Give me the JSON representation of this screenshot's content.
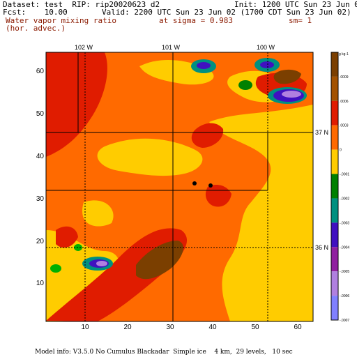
{
  "header": {
    "dataset": "Dataset: test  RIP: rip20020623 d2",
    "init": "Init: 1200 UTC Sun 23 Jun 02",
    "fcst": "Fcst:    10.00",
    "valid": "Valid: 2200 UTC Sun 23 Jun 02 (1700 CDT Sun 23 Jun 02)",
    "field_line1": "Water vapor mixing ratio",
    "sigma": "at sigma = 0.983",
    "sm": "sm= 1",
    "field_line2": "(hor. advec.)"
  },
  "longitude_labels": [
    "102 W",
    "101 W",
    "100 W"
  ],
  "latitude_labels": [
    "37 N",
    "36 N"
  ],
  "x_ticks": [
    "10",
    "20",
    "30",
    "40",
    "50",
    "60"
  ],
  "y_ticks": [
    "10",
    "20",
    "30",
    "40",
    "50",
    "60"
  ],
  "colorbar": {
    "units": "g kg-1",
    "labels": [
      ".0009",
      ".0006",
      ".0003",
      "0",
      "-.0001",
      "-.0002",
      "-.0003",
      "-.0004",
      "-.0005",
      "-.0006",
      "-.0007"
    ],
    "colors": [
      "#7b3f00",
      "#a35200",
      "#e01c00",
      "#ff6a00",
      "#ffcc00",
      "#008000",
      "#009080",
      "#4010c0",
      "#9020a0",
      "#b080e0",
      "#8080ff"
    ]
  },
  "footer": "Model info: V3.5.0 No Cumulus Blackadar  Simple ice    4 km,  29 levels,   10 sec"
}
